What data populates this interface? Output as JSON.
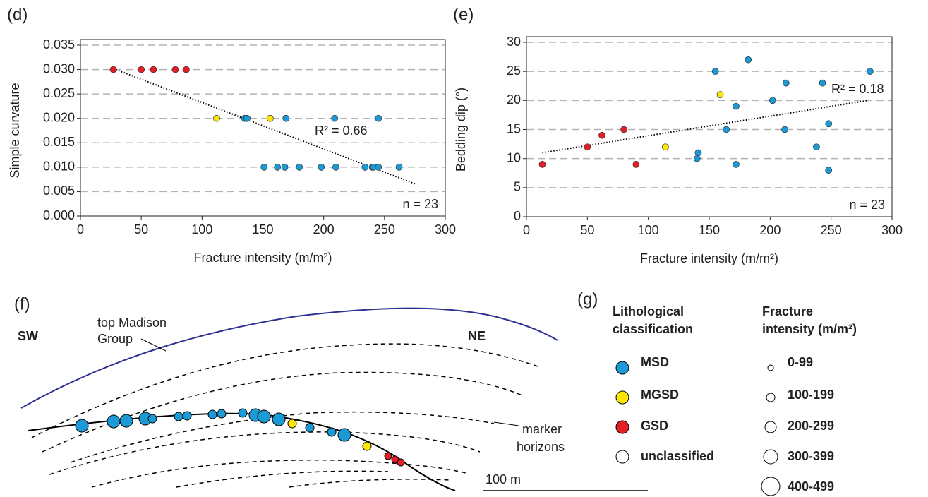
{
  "chart_data": [
    {
      "type": "scatter",
      "panel_label": "(d)",
      "x_label": "Fracture intensity (m/m²)",
      "y_label": "Simple curvature",
      "xlim": [
        0,
        300
      ],
      "xticks": [
        0,
        50,
        100,
        150,
        200,
        250,
        300
      ],
      "ylim": [
        0,
        0.035
      ],
      "yticks": [
        {
          "value": 0,
          "label": "0.000"
        },
        {
          "value": 0.005,
          "label": "0.005"
        },
        {
          "value": 0.01,
          "label": "0.010"
        },
        {
          "value": 0.015,
          "label": "0.015"
        },
        {
          "value": 0.02,
          "label": "0.020"
        },
        {
          "value": 0.025,
          "label": "0.025"
        },
        {
          "value": 0.03,
          "label": "0.030"
        },
        {
          "value": 0.035,
          "label": "0.035"
        }
      ],
      "grid": true,
      "series": [
        {
          "color": "#e31e24",
          "x": [
            27,
            50,
            60,
            78,
            87
          ],
          "values": [
            0.03,
            0.03,
            0.03,
            0.03,
            0.03
          ]
        },
        {
          "color": "#ffe600",
          "x": [
            112,
            156
          ],
          "values": [
            0.02,
            0.02
          ]
        },
        {
          "color": "#1b9ad6",
          "x": [
            135,
            137,
            169,
            209,
            245,
            151,
            162,
            168,
            180,
            198,
            210,
            234,
            240,
            241,
            245,
            262
          ],
          "values": [
            0.02,
            0.02,
            0.02,
            0.02,
            0.02,
            0.01,
            0.01,
            0.01,
            0.01,
            0.01,
            0.01,
            0.01,
            0.01,
            0.01,
            0.01,
            0.01
          ]
        }
      ],
      "trendline": {
        "x": [
          27,
          276
        ],
        "values": [
          0.0302,
          0.0065
        ]
      },
      "annotations": [
        "R² = 0.66",
        "n = 23"
      ]
    },
    {
      "type": "scatter",
      "panel_label": "(e)",
      "x_label": "Fracture intensity (m/m²)",
      "y_label": "Bedding dip (°)",
      "xlim": [
        0,
        300
      ],
      "xticks": [
        0,
        50,
        100,
        150,
        200,
        250,
        300
      ],
      "ylim": [
        0,
        30
      ],
      "yticks": [
        0,
        5,
        10,
        15,
        20,
        25,
        30
      ],
      "grid": true,
      "series": [
        {
          "color": "#e31e24",
          "x": [
            13,
            50,
            62,
            80,
            90
          ],
          "values": [
            9,
            12,
            14,
            15,
            9
          ]
        },
        {
          "color": "#ffe600",
          "x": [
            114,
            159
          ],
          "values": [
            12,
            21
          ]
        },
        {
          "color": "#1b9ad6",
          "x": [
            155,
            182,
            172,
            164,
            141,
            140,
            172,
            202,
            213,
            212,
            243,
            238,
            248,
            248,
            282
          ],
          "values": [
            25,
            27,
            19,
            15,
            11,
            10,
            9,
            20,
            23,
            15,
            23,
            12,
            16,
            8,
            25
          ]
        }
      ],
      "trendline": {
        "x": [
          13,
          280
        ],
        "values": [
          11,
          20
        ]
      },
      "annotations": [
        "R² = 0.18",
        "n = 23"
      ]
    }
  ],
  "cross_section": {
    "panel_label": "(f)",
    "left": "SW",
    "right": "NE",
    "top_label": [
      "top Madison",
      "Group"
    ],
    "marker_label": [
      "marker",
      "horizons"
    ],
    "scale": "100 m"
  },
  "legend": {
    "panel_label": "(g)",
    "lith_title": [
      "Lithological",
      "classification"
    ],
    "lith_items": [
      "MSD",
      "MGSD",
      "GSD",
      "unclassified"
    ],
    "size_title": [
      "Fracture",
      "intensity (m/m²)"
    ],
    "size_items": [
      "0-99",
      "100-199",
      "200-299",
      "300-399",
      "400-499"
    ]
  }
}
